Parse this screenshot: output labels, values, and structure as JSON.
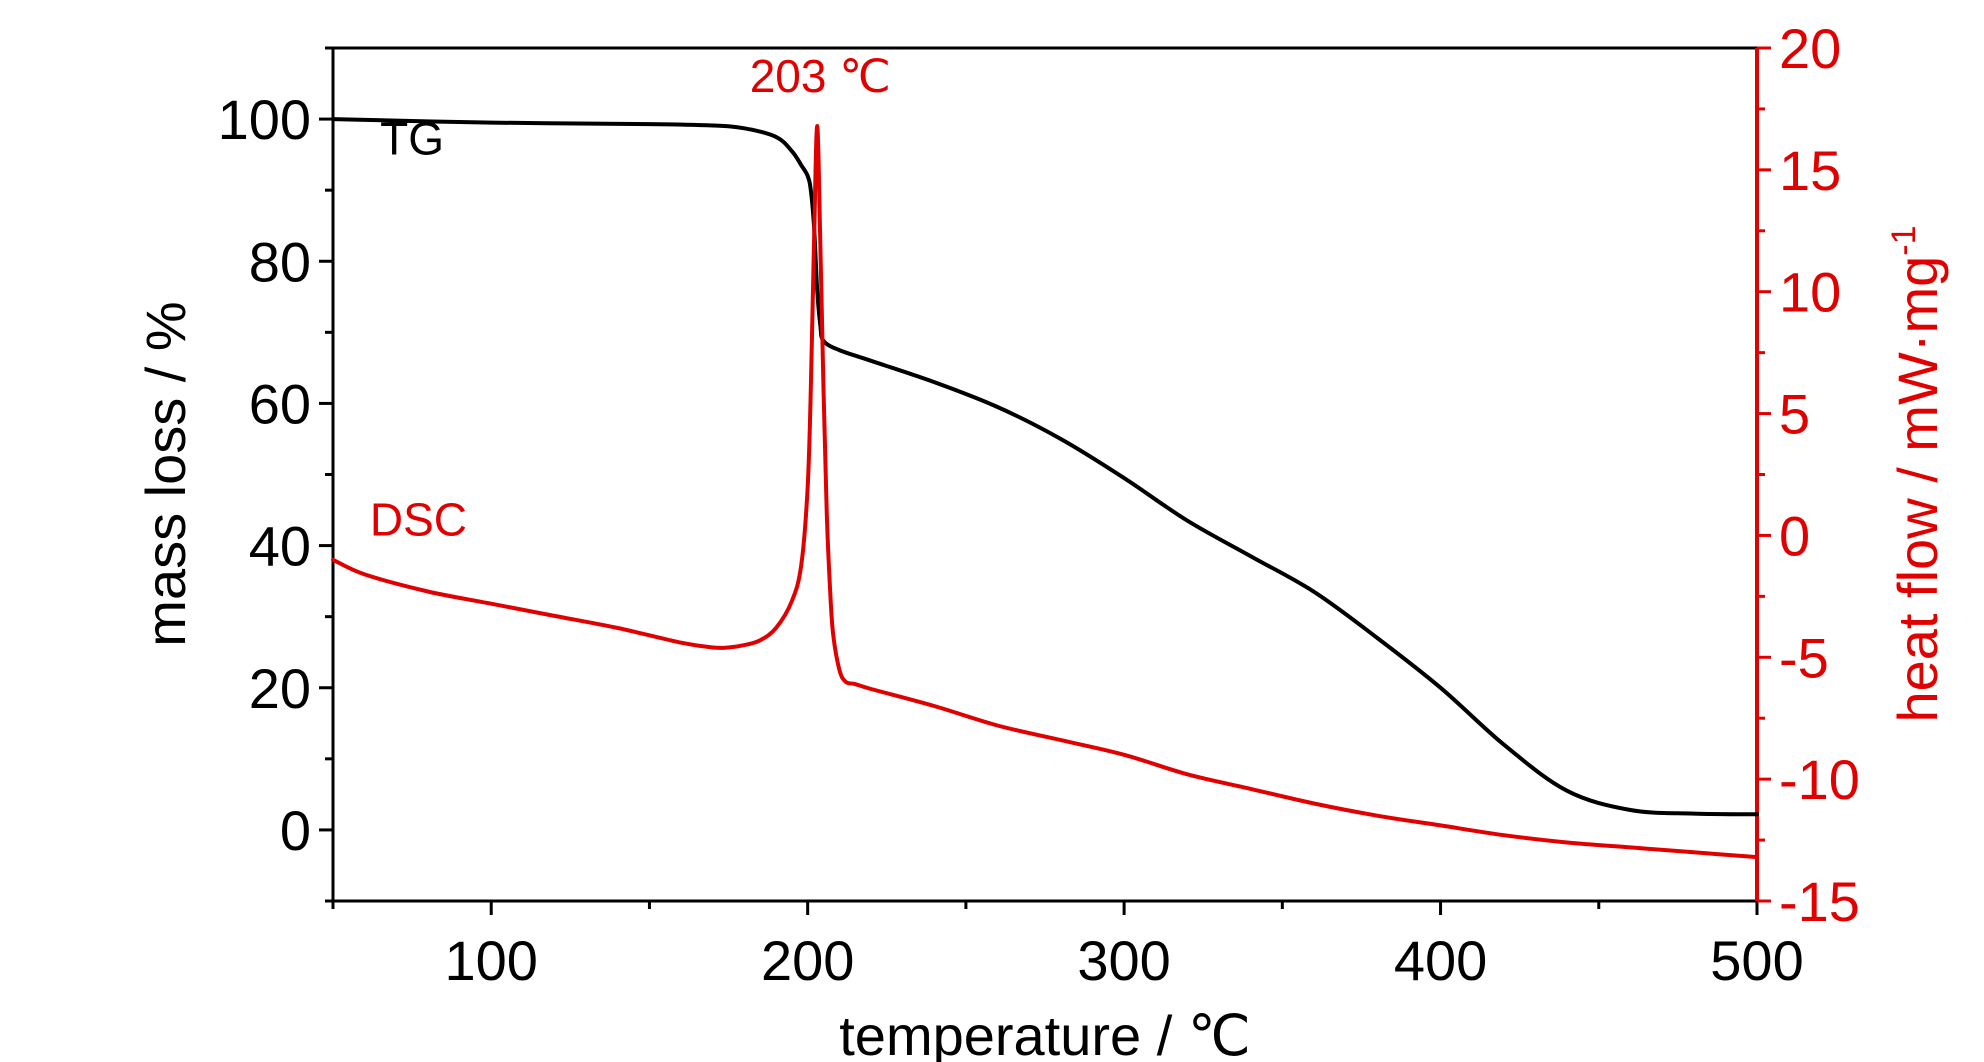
{
  "chart_data": {
    "type": "line",
    "xlabel": "temperature / ℃",
    "ylabel_left": "mass loss / %",
    "ylabel_right": "heat flow / mW·mg",
    "ylabel_right_superscript": "-1",
    "xlim": [
      50,
      500
    ],
    "ylim_left": [
      -10,
      110
    ],
    "ylim_right": [
      -15,
      20
    ],
    "x_ticks": [
      100,
      200,
      300,
      400,
      500
    ],
    "y_left_ticks": [
      0,
      20,
      40,
      60,
      80,
      100
    ],
    "y_right_ticks": [
      -15,
      -10,
      -5,
      0,
      5,
      10,
      15,
      20
    ],
    "y_right_tick_labels": [
      "-15",
      "-10",
      "-5",
      "0",
      "5",
      "10",
      "15",
      "20"
    ],
    "grid": false,
    "colors": {
      "TG": "#000000",
      "DSC": "#e10000"
    },
    "series": [
      {
        "name": "TG",
        "axis": "left",
        "x": [
          50,
          100,
          150,
          170,
          180,
          190,
          195,
          198,
          200,
          201,
          202,
          203,
          204,
          205,
          210,
          220,
          240,
          260,
          280,
          300,
          320,
          340,
          360,
          380,
          400,
          420,
          440,
          460,
          480,
          500
        ],
        "y": [
          100,
          99.5,
          99.3,
          99.1,
          98.7,
          97.5,
          95.5,
          93.5,
          92.0,
          90.0,
          85.0,
          76.0,
          71.0,
          68.8,
          67.5,
          66.0,
          63.0,
          59.5,
          55.0,
          49.5,
          43.5,
          38.5,
          33.5,
          27.0,
          20.0,
          12.0,
          5.5,
          2.8,
          2.3,
          2.2
        ]
      },
      {
        "name": "DSC",
        "axis": "right",
        "x": [
          50,
          60,
          80,
          100,
          120,
          140,
          160,
          170,
          175,
          180,
          185,
          190,
          195,
          198,
          200,
          201,
          202,
          203,
          204,
          205,
          206,
          207,
          208,
          210,
          212,
          215,
          220,
          240,
          260,
          280,
          300,
          320,
          340,
          360,
          380,
          400,
          420,
          440,
          460,
          480,
          500
        ],
        "y": [
          -1.0,
          -1.6,
          -2.3,
          -2.8,
          -3.3,
          -3.8,
          -4.4,
          -4.6,
          -4.6,
          -4.5,
          -4.3,
          -3.8,
          -2.7,
          -1.2,
          2.0,
          6.0,
          12.0,
          16.8,
          12.0,
          6.0,
          1.0,
          -2.0,
          -4.0,
          -5.5,
          -6.0,
          -6.1,
          -6.3,
          -7.0,
          -7.8,
          -8.4,
          -9.0,
          -9.8,
          -10.4,
          -11.0,
          -11.5,
          -11.9,
          -12.3,
          -12.6,
          -12.8,
          -13.0,
          -13.2
        ]
      }
    ],
    "annotations": [
      {
        "text": "TG",
        "color": "#000000",
        "x": 75,
        "y_left": 95
      },
      {
        "text": "DSC",
        "color": "#e10000",
        "x": 77,
        "y_right": 0
      },
      {
        "text": "203 ℃",
        "color": "#e10000",
        "x": 204,
        "y_right": 18.2
      }
    ]
  }
}
